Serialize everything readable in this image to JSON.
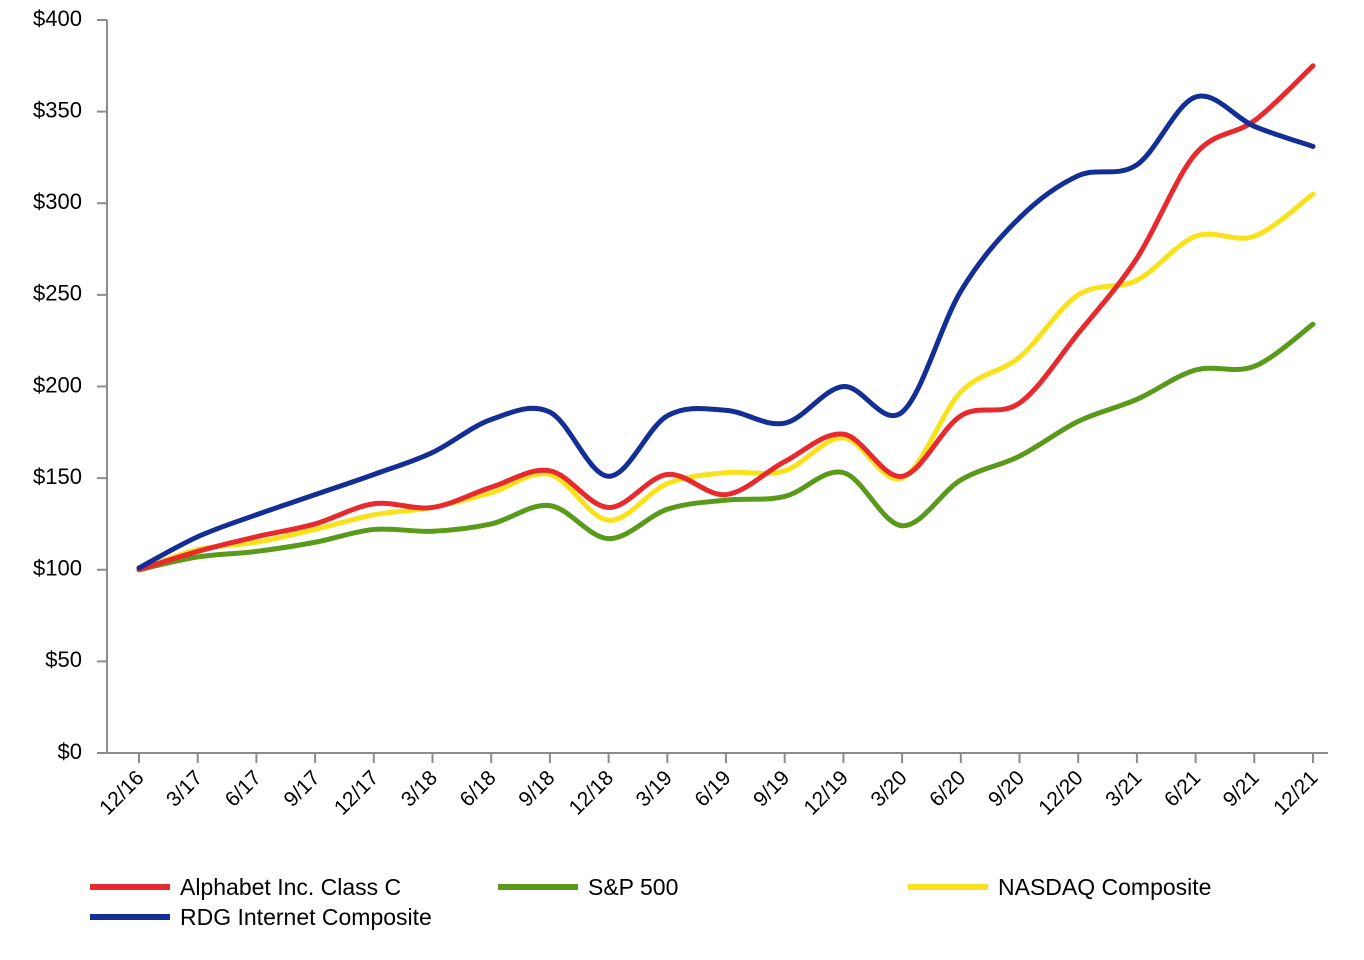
{
  "chart_data": {
    "type": "line",
    "title": "",
    "xlabel": "",
    "ylabel": "",
    "ylim": [
      0,
      400
    ],
    "y_ticks": [
      0,
      50,
      100,
      150,
      200,
      250,
      300,
      350,
      400
    ],
    "y_tick_labels": [
      "$0",
      "$50",
      "$100",
      "$150",
      "$200",
      "$250",
      "$300",
      "$350",
      "$400"
    ],
    "categories": [
      "12/16",
      "3/17",
      "6/17",
      "9/17",
      "12/17",
      "3/18",
      "6/18",
      "9/18",
      "12/18",
      "3/19",
      "6/19",
      "9/19",
      "12/19",
      "3/20",
      "6/20",
      "9/20",
      "12/20",
      "3/21",
      "6/21",
      "9/21",
      "12/21"
    ],
    "grid": false,
    "legend_position": "bottom",
    "series": [
      {
        "name": "Alphabet Inc. Class C",
        "color": "#e8292d",
        "values": [
          100,
          110,
          118,
          125,
          136,
          134,
          145,
          154,
          134,
          152,
          141,
          159,
          174,
          151,
          184,
          191,
          229,
          270,
          327,
          345,
          375
        ]
      },
      {
        "name": "S&P 500",
        "color": "#5a9a1a",
        "values": [
          100,
          107,
          110,
          115,
          122,
          121,
          125,
          135,
          117,
          133,
          138,
          140,
          153,
          124,
          149,
          162,
          181,
          193,
          209,
          211,
          234
        ]
      },
      {
        "name": "NASDAQ Composite",
        "color": "#f9e21b",
        "values": [
          100,
          111,
          115,
          122,
          130,
          134,
          142,
          152,
          127,
          147,
          153,
          154,
          172,
          150,
          197,
          216,
          250,
          258,
          282,
          282,
          305
        ]
      },
      {
        "name": "RDG Internet Composite",
        "color": "#132f96",
        "values": [
          101,
          118,
          130,
          141,
          152,
          164,
          182,
          186,
          151,
          184,
          187,
          180,
          200,
          186,
          252,
          292,
          315,
          321,
          358,
          342,
          331
        ]
      }
    ]
  }
}
